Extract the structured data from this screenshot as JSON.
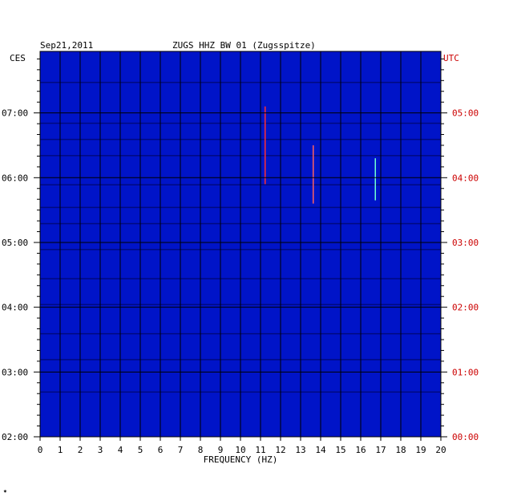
{
  "header": {
    "date": "Sep21,2011",
    "station": "ZUGS HHZ BW 01 (Zugsspitze)",
    "left_zone": "CES",
    "right_zone": "UTC"
  },
  "footer_mark": "✷",
  "chart_data": {
    "type": "heatmap",
    "xlabel": "FREQUENCY (HZ)",
    "xlim": [
      0,
      20
    ],
    "x_ticks": [
      "0",
      "1",
      "2",
      "3",
      "4",
      "5",
      "6",
      "7",
      "8",
      "9",
      "10",
      "11",
      "12",
      "13",
      "14",
      "15",
      "16",
      "17",
      "18",
      "19",
      "20"
    ],
    "y_ticks_local": [
      "07:00",
      "06:00",
      "05:00",
      "04:00",
      "03:00",
      "02:00"
    ],
    "y_ticks_utc": [
      "05:00",
      "04:00",
      "03:00",
      "02:00",
      "01:00",
      "00:00"
    ],
    "y_tick_hours_local": [
      7,
      6,
      5,
      4,
      3,
      2
    ],
    "ylim_local_hours": [
      2.0,
      7.95
    ],
    "colors": {
      "background": "#0014c8",
      "grid": "#000000",
      "utc_label": "#cc0000"
    }
  }
}
